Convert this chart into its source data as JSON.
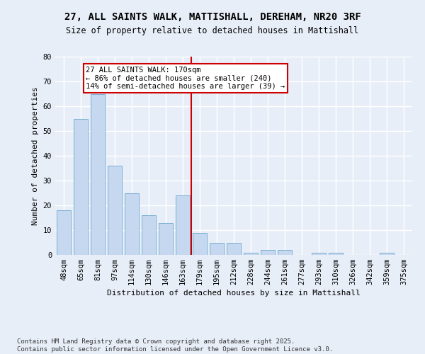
{
  "title1": "27, ALL SAINTS WALK, MATTISHALL, DEREHAM, NR20 3RF",
  "title2": "Size of property relative to detached houses in Mattishall",
  "xlabel": "Distribution of detached houses by size in Mattishall",
  "ylabel": "Number of detached properties",
  "categories": [
    "48sqm",
    "65sqm",
    "81sqm",
    "97sqm",
    "114sqm",
    "130sqm",
    "146sqm",
    "163sqm",
    "179sqm",
    "195sqm",
    "212sqm",
    "228sqm",
    "244sqm",
    "261sqm",
    "277sqm",
    "293sqm",
    "310sqm",
    "326sqm",
    "342sqm",
    "359sqm",
    "375sqm"
  ],
  "values": [
    18,
    55,
    65,
    36,
    25,
    16,
    13,
    24,
    9,
    5,
    5,
    1,
    2,
    2,
    0,
    1,
    1,
    0,
    0,
    1,
    0
  ],
  "bar_color": "#c5d8ef",
  "bar_edge_color": "#7aafd4",
  "ref_line_x": 7.5,
  "ref_line_label": "27 ALL SAINTS WALK: 170sqm",
  "annotation_line1": "← 86% of detached houses are smaller (240)",
  "annotation_line2": "14% of semi-detached houses are larger (39) →",
  "annotation_box_color": "#ffffff",
  "annotation_box_edge": "#cc0000",
  "ref_line_color": "#cc0000",
  "footer": "Contains HM Land Registry data © Crown copyright and database right 2025.\nContains public sector information licensed under the Open Government Licence v3.0.",
  "ylim": [
    0,
    80
  ],
  "yticks": [
    0,
    10,
    20,
    30,
    40,
    50,
    60,
    70,
    80
  ],
  "bg_color": "#e8eef8",
  "plot_bg_color": "#e8eef8",
  "grid_color": "#ffffff",
  "title_fontsize": 10,
  "subtitle_fontsize": 8.5,
  "axis_label_fontsize": 8,
  "tick_fontsize": 7.5,
  "footer_fontsize": 6.5,
  "annot_fontsize": 7.5
}
